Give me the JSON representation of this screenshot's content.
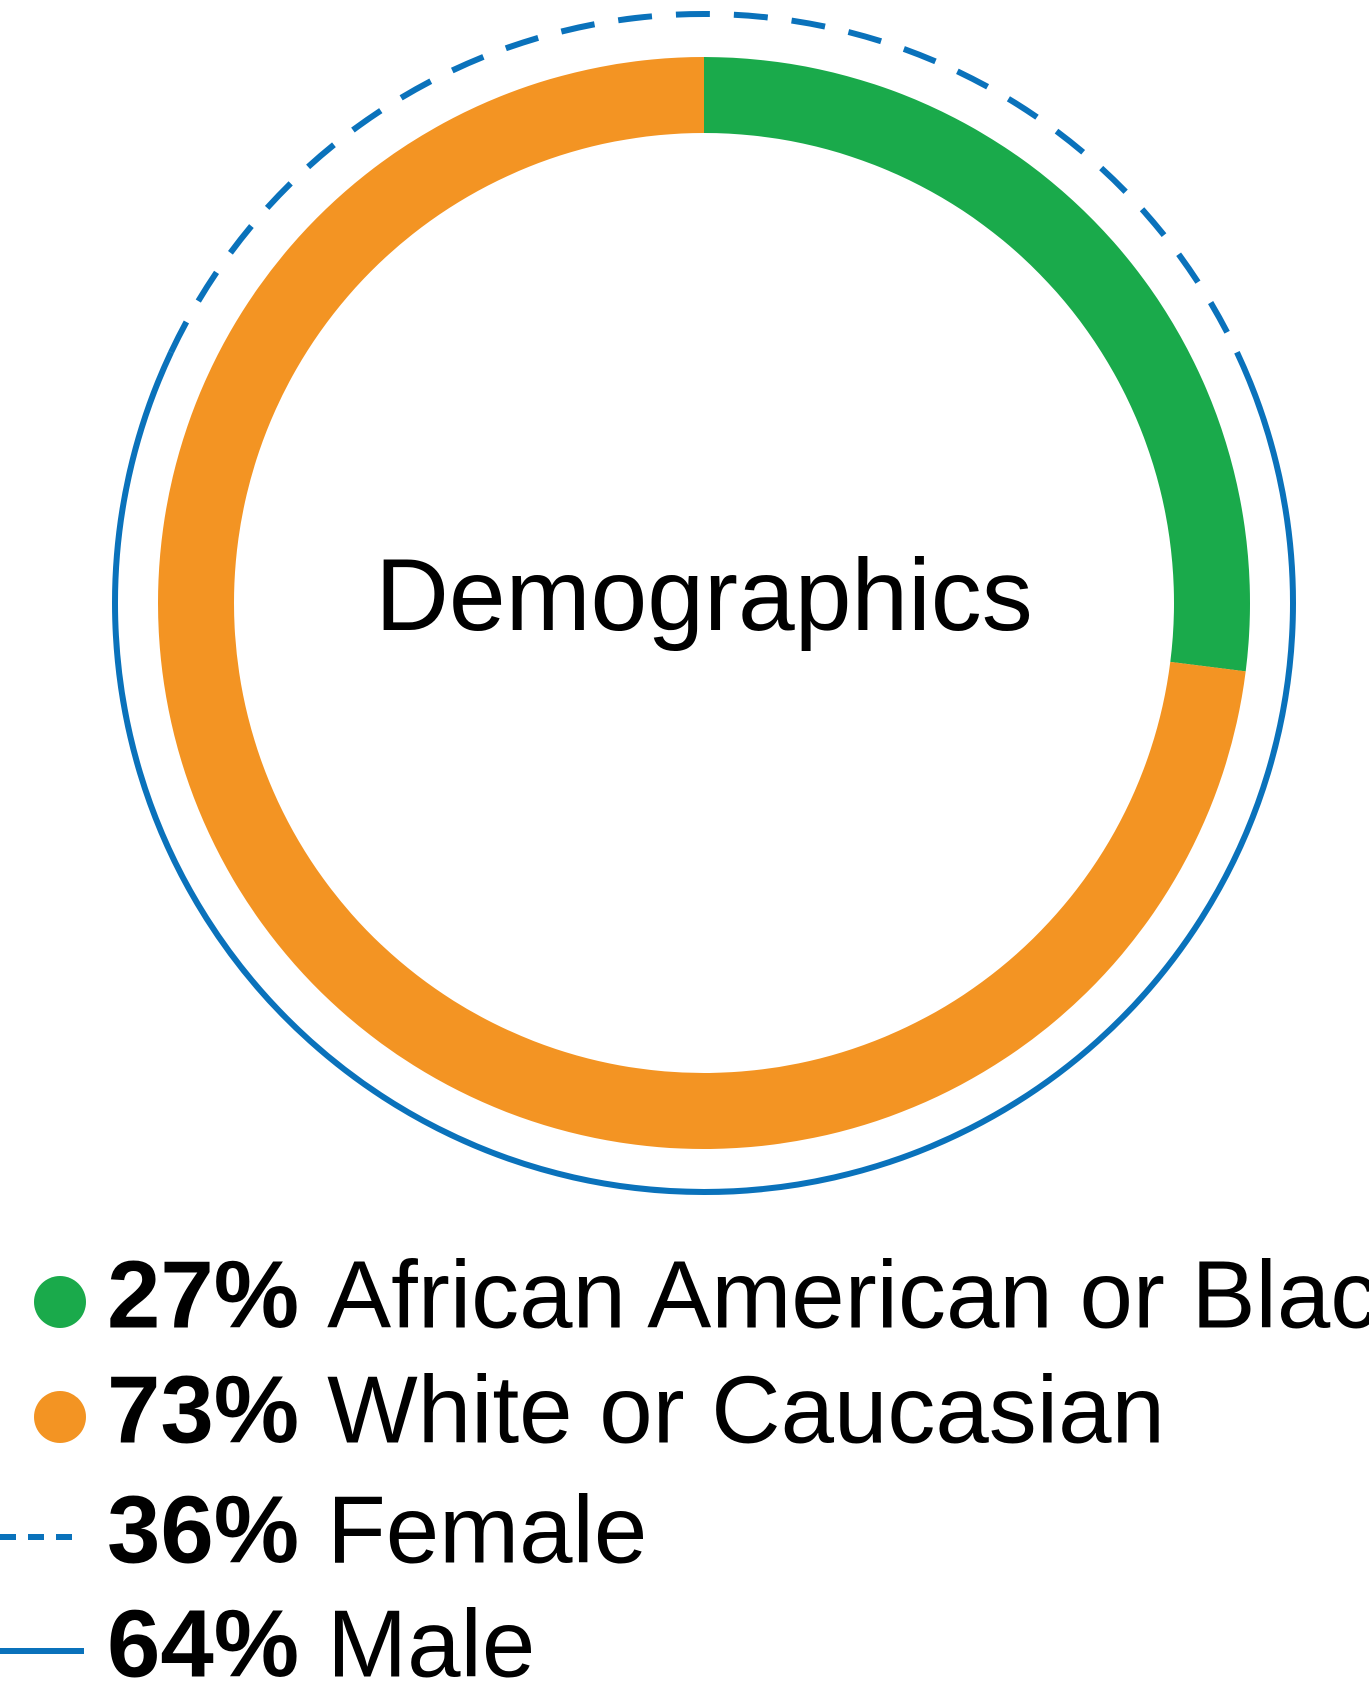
{
  "chart_data": {
    "type": "pie",
    "title": "Demographics",
    "rings": [
      {
        "categories": [
          "African American or Black",
          "White or Caucasian"
        ],
        "values": [
          27,
          73
        ],
        "value_labels": [
          "27%",
          "73%"
        ],
        "colors": [
          "#1aaa4b",
          "#f39423"
        ],
        "line_styles": [
          "fill",
          "fill"
        ]
      },
      {
        "categories": [
          "Female",
          "Male"
        ],
        "values": [
          36,
          64
        ],
        "value_labels": [
          "36%",
          "64%"
        ],
        "colors": [
          "#0a72bb",
          "#0a72bb"
        ],
        "line_styles": [
          "dashed",
          "solid"
        ]
      }
    ]
  }
}
